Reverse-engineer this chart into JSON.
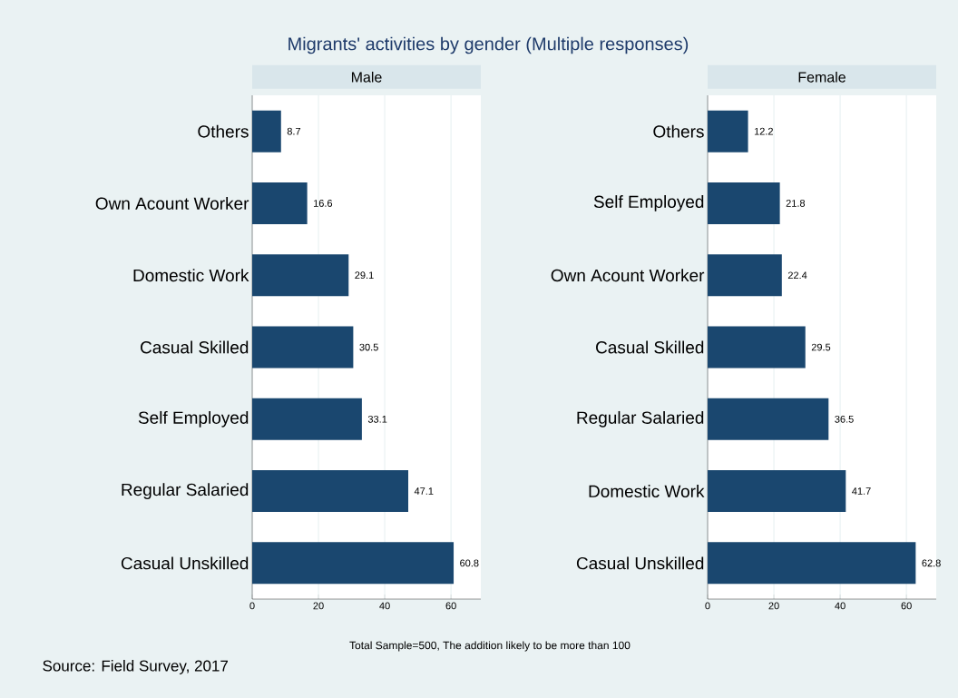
{
  "chart_data": [
    {
      "type": "bar",
      "orientation": "horizontal",
      "title": "Migrants' activities by gender (Multiple responses)",
      "subtitle": "Male",
      "categories": [
        "Others",
        "Own Acount Worker",
        "Domestic Work",
        "Casual Skilled",
        "Self Employed",
        "Regular Salaried",
        "Casual Unskilled"
      ],
      "values": [
        8.7,
        16.6,
        29.1,
        30.5,
        33.1,
        47.1,
        60.8
      ],
      "color": "#1a476f",
      "xlim": [
        0,
        69
      ],
      "xticks": [
        0,
        20,
        40,
        60
      ],
      "grid": "x",
      "data_labels": true,
      "annotations": [
        "Total Sample=500, The addition likely to be more than 100",
        "Source: Field Survey, 2017"
      ]
    },
    {
      "type": "bar",
      "orientation": "horizontal",
      "subtitle": "Female",
      "categories": [
        "Others",
        "Self Employed",
        "Own Acount Worker",
        "Casual Skilled",
        "Regular Salaried",
        "Domestic Work",
        "Casual Unskilled"
      ],
      "values": [
        12.2,
        21.8,
        22.4,
        29.5,
        36.5,
        41.7,
        62.8
      ],
      "color": "#1a476f",
      "xlim": [
        0,
        69
      ],
      "xticks": [
        0,
        20,
        40,
        60
      ],
      "grid": "x",
      "data_labels": true
    }
  ]
}
